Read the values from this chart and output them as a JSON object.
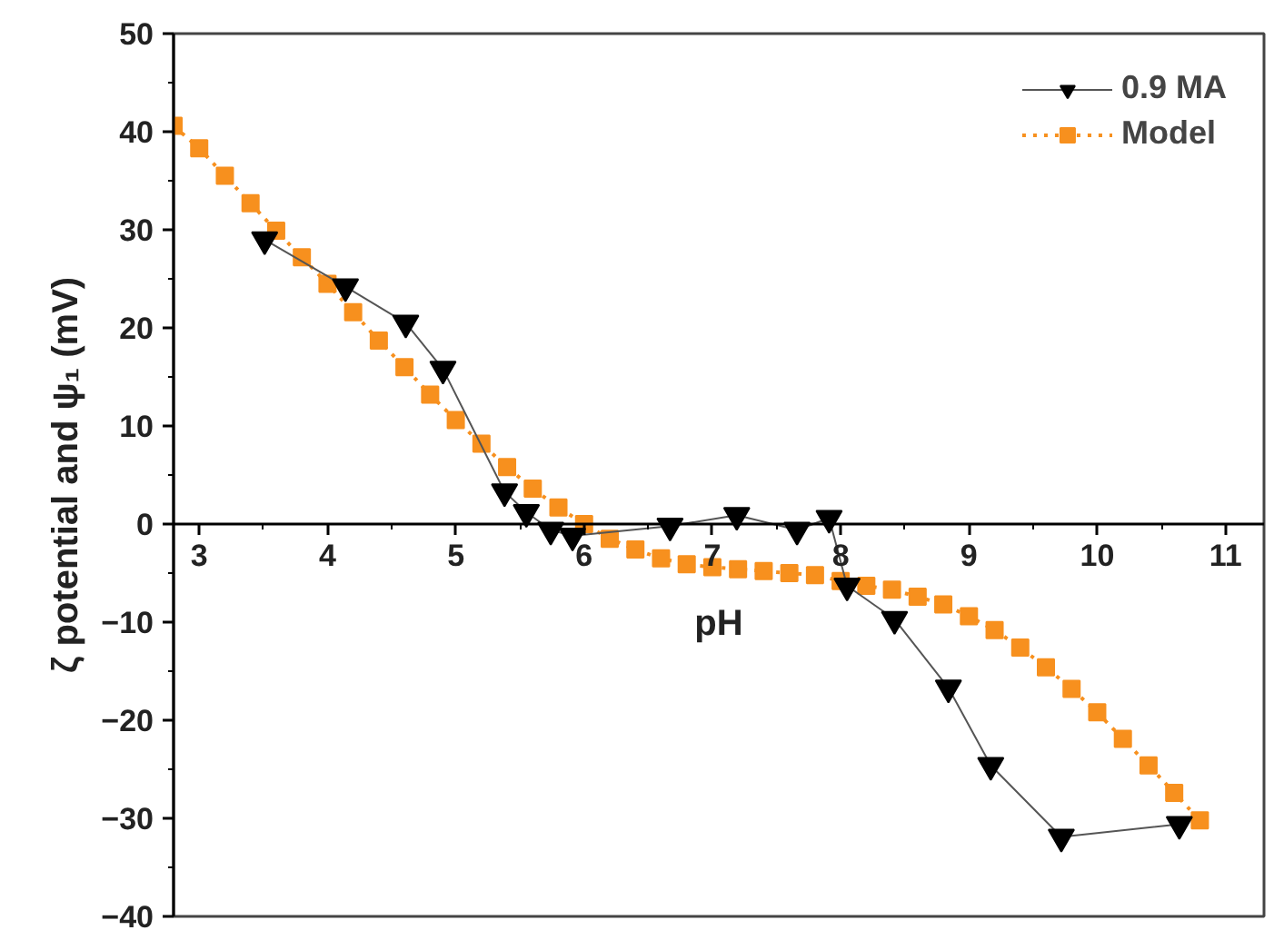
{
  "chart_data": {
    "type": "line",
    "xlabel": "pH",
    "ylabel": "ζ potential and ψ₁ (mV)",
    "xlim": [
      2.8,
      11.3
    ],
    "ylim": [
      -40,
      50
    ],
    "xticks": [
      3,
      4,
      5,
      6,
      7,
      8,
      9,
      10,
      11
    ],
    "yticks": [
      -40,
      -30,
      -20,
      -10,
      0,
      10,
      20,
      30,
      40,
      50
    ],
    "grid": false,
    "legend": "top right",
    "series": [
      {
        "name": "0.9 MA",
        "color": "#000000",
        "marker": "triangle",
        "line_style": "solid",
        "x": [
          3.51,
          4.14,
          4.61,
          4.9,
          5.38,
          5.55,
          5.74,
          5.91,
          6.67,
          7.19,
          7.66,
          7.91,
          8.05,
          8.42,
          8.84,
          9.17,
          9.72,
          10.64
        ],
        "values": [
          29.0,
          24.2,
          20.5,
          15.8,
          3.3,
          1.2,
          -0.6,
          -1.2,
          -0.2,
          0.9,
          -0.6,
          0.6,
          -6.3,
          -9.7,
          -16.7,
          -24.6,
          -31.9,
          -30.6
        ]
      },
      {
        "name": "Model",
        "color": "#f7901e",
        "marker": "square",
        "line_style": "dotted",
        "x": [
          2.8,
          3.0,
          3.2,
          3.4,
          3.6,
          3.8,
          4.0,
          4.2,
          4.4,
          4.6,
          4.8,
          5.0,
          5.2,
          5.4,
          5.6,
          5.8,
          6.0,
          6.2,
          6.4,
          6.6,
          6.8,
          7.0,
          7.2,
          7.4,
          7.6,
          7.8,
          8.0,
          8.2,
          8.4,
          8.6,
          8.8,
          9.0,
          9.2,
          9.4,
          9.6,
          9.8,
          10.0,
          10.2,
          10.4,
          10.6,
          10.8
        ],
        "values": [
          40.6,
          38.3,
          35.5,
          32.7,
          29.9,
          27.2,
          24.5,
          21.6,
          18.7,
          16.0,
          13.2,
          10.6,
          8.2,
          5.8,
          3.6,
          1.7,
          0.0,
          -1.5,
          -2.6,
          -3.5,
          -4.1,
          -4.4,
          -4.6,
          -4.8,
          -5.0,
          -5.2,
          -5.8,
          -6.3,
          -6.7,
          -7.4,
          -8.2,
          -9.4,
          -10.8,
          -12.6,
          -14.6,
          -16.8,
          -19.2,
          -21.9,
          -24.6,
          -27.4,
          -30.2
        ]
      }
    ]
  }
}
